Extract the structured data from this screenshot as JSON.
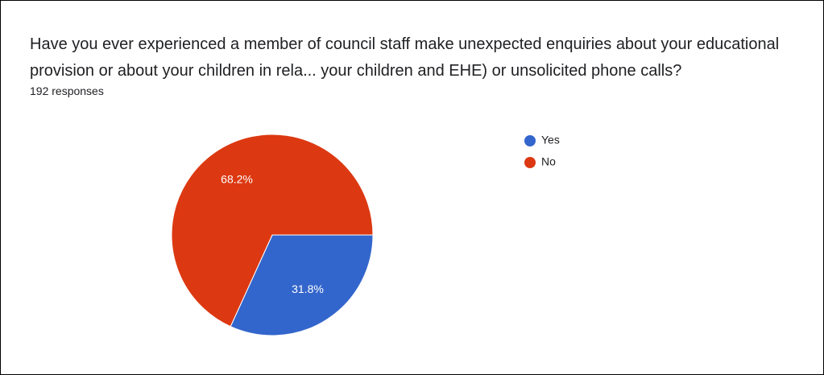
{
  "chart_data": {
    "type": "pie",
    "title": "Have you ever experienced a member of council staff make unexpected enquiries about your educational provision or about your children in rela... your children and EHE) or unsolicited phone calls?",
    "subtitle": "192 responses",
    "categories": [
      "Yes",
      "No"
    ],
    "values": [
      31.8,
      68.2
    ],
    "value_labels": [
      "31.8%",
      "68.2%"
    ],
    "colors": [
      "#3366cc",
      "#dc3912"
    ]
  }
}
